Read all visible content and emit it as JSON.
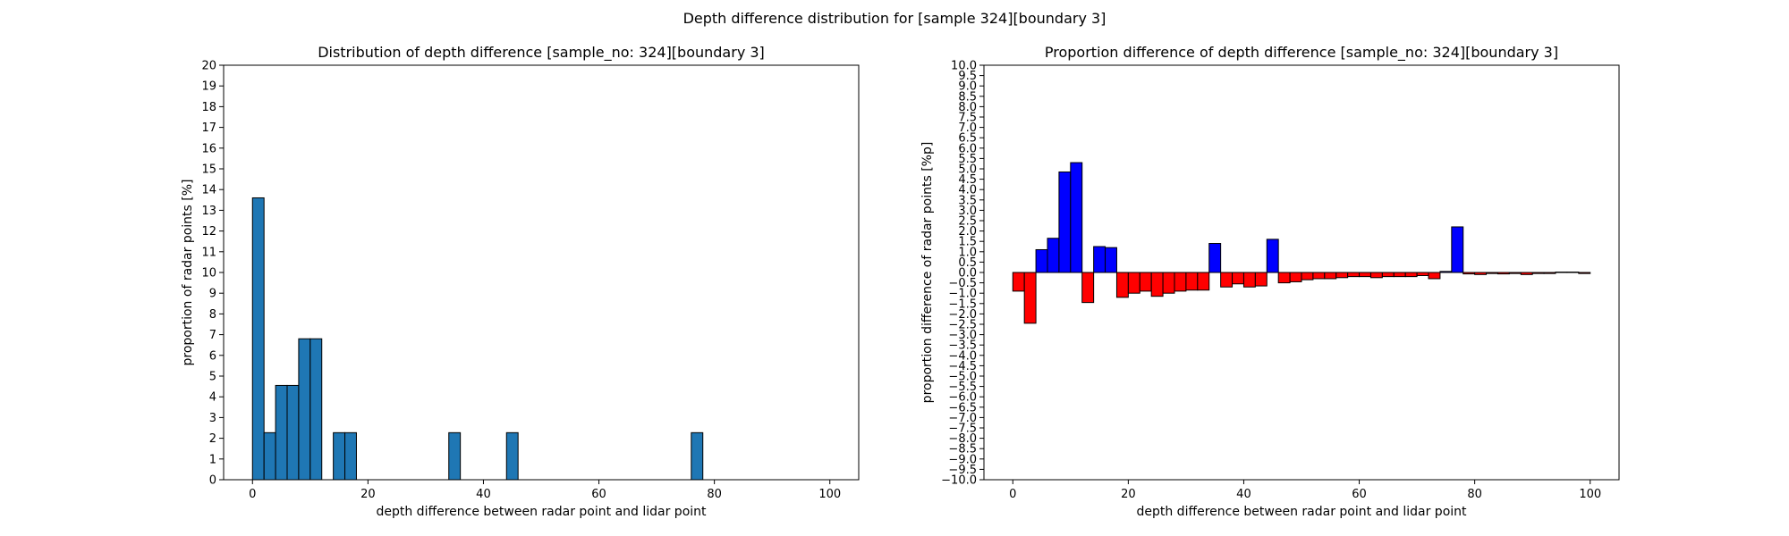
{
  "figure": {
    "suptitle": "Depth difference distribution for [sample 324][boundary 3]"
  },
  "chart_data": [
    {
      "type": "bar",
      "title": "Distribution of depth difference [sample_no: 324][boundary 3]",
      "xlabel": "depth difference between radar point and lidar point",
      "ylabel": "proportion of radar points [%]",
      "xlim": [
        -5,
        105
      ],
      "ylim": [
        0,
        20
      ],
      "xticks": [
        0,
        20,
        40,
        60,
        80,
        100
      ],
      "yticks": [
        0,
        1,
        2,
        3,
        4,
        5,
        6,
        7,
        8,
        9,
        10,
        11,
        12,
        13,
        14,
        15,
        16,
        17,
        18,
        19,
        20
      ],
      "bin_width": 2,
      "color": "#1f77b4",
      "edge_color": "#000000",
      "bins": [
        0,
        2,
        4,
        6,
        8,
        10,
        14,
        16,
        34,
        44,
        76
      ],
      "values": [
        13.6,
        2.27,
        4.55,
        4.55,
        6.8,
        6.8,
        2.27,
        2.27,
        2.27,
        2.27,
        2.27
      ],
      "grid": false
    },
    {
      "type": "bar",
      "title": "Proportion difference of depth difference [sample_no: 324][boundary 3]",
      "xlabel": "depth difference between radar point and lidar point",
      "ylabel": "proportion difference of radar points [%p]",
      "xlim": [
        -5,
        105
      ],
      "ylim": [
        -10,
        10
      ],
      "xticks": [
        0,
        20,
        40,
        60,
        80,
        100
      ],
      "ytick_step": 0.5,
      "bin_width": 2,
      "positive_color": "#0000ff",
      "negative_color": "#ff0000",
      "edge_color": "#000000",
      "bins": [
        0,
        2,
        4,
        6,
        8,
        10,
        12,
        14,
        16,
        18,
        20,
        22,
        24,
        26,
        28,
        30,
        32,
        34,
        36,
        38,
        40,
        42,
        44,
        46,
        48,
        50,
        52,
        54,
        56,
        58,
        60,
        62,
        64,
        66,
        68,
        70,
        72,
        74,
        76,
        78,
        80,
        82,
        84,
        86,
        88,
        90,
        92,
        94,
        96,
        98
      ],
      "values": [
        -0.9,
        -2.45,
        1.1,
        1.65,
        4.85,
        5.3,
        -1.45,
        1.25,
        1.2,
        -1.2,
        -1.0,
        -0.9,
        -1.15,
        -1.0,
        -0.9,
        -0.85,
        -0.85,
        1.4,
        -0.7,
        -0.55,
        -0.7,
        -0.65,
        1.6,
        -0.5,
        -0.45,
        -0.35,
        -0.3,
        -0.3,
        -0.25,
        -0.2,
        -0.2,
        -0.25,
        -0.2,
        -0.2,
        -0.2,
        -0.15,
        -0.3,
        0.05,
        2.2,
        -0.07,
        -0.1,
        -0.05,
        -0.07,
        -0.05,
        -0.1,
        -0.05,
        -0.05,
        0.02,
        0.02,
        -0.05
      ],
      "grid": false
    }
  ]
}
